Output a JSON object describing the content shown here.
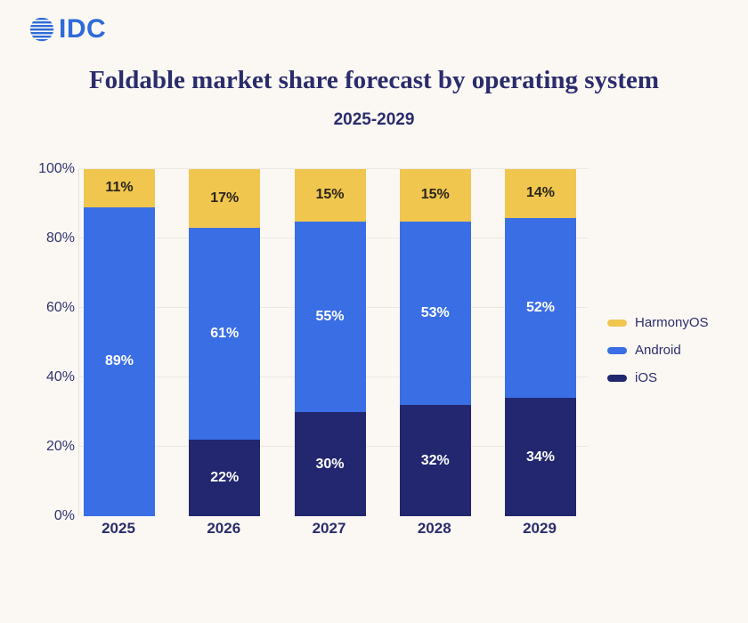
{
  "logo": {
    "text": "IDC",
    "icon": "striped-globe-icon",
    "color": "#2E6BD8"
  },
  "header": {
    "title": "Foldable market share forecast by operating system",
    "subtitle": "2025-2029"
  },
  "colors": {
    "background": "#FBF8F4",
    "title_text": "#2B2C6C",
    "axis_text": "#32346D",
    "gridline": "#ECE9E4",
    "label_on_light": "#2A2518",
    "label_on_dark": "#FFFFFF"
  },
  "chart_data": {
    "type": "bar",
    "stacked": true,
    "title": "Foldable market share forecast by operating system",
    "subtitle": "2025-2029",
    "categories": [
      "2025",
      "2026",
      "2027",
      "2028",
      "2029"
    ],
    "series": [
      {
        "name": "iOS",
        "color": "#22276F",
        "label_color": "#FFFFFF",
        "values": [
          0,
          22,
          30,
          32,
          34
        ]
      },
      {
        "name": "Android",
        "color": "#3A6EE5",
        "label_color": "#FFFFFF",
        "values": [
          89,
          61,
          55,
          53,
          52
        ]
      },
      {
        "name": "HarmonyOS",
        "color": "#F0C64F",
        "label_color": "#2A2518",
        "values": [
          11,
          17,
          15,
          15,
          14
        ]
      }
    ],
    "value_suffix": "%",
    "xlabel": "",
    "ylabel": "",
    "ylim": [
      0,
      100
    ],
    "yticks": [
      0,
      20,
      40,
      60,
      80,
      100
    ],
    "ytick_suffix": "%",
    "grid": true,
    "legend_position": "right",
    "legend_order": [
      "HarmonyOS",
      "Android",
      "iOS"
    ]
  }
}
